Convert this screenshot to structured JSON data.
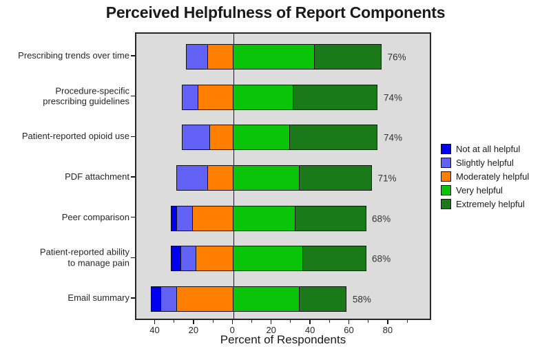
{
  "chart_data": {
    "type": "bar",
    "variant": "diverging-stacked-horizontal",
    "title": "Perceived Helpfulness of Report Components",
    "xlabel": "Percent of Respondents",
    "plot_background": "#dcdcdc",
    "grid": false,
    "zero_line": true,
    "legend_position": "right-center",
    "x_range": [
      -50,
      102
    ],
    "x_major_ticks": [
      {
        "value": -40,
        "label": "40"
      },
      {
        "value": -20,
        "label": "20"
      },
      {
        "value": 0,
        "label": "0"
      },
      {
        "value": 20,
        "label": "20"
      },
      {
        "value": 40,
        "label": "40"
      },
      {
        "value": 60,
        "label": "60"
      },
      {
        "value": 80,
        "label": "80"
      }
    ],
    "x_minor_tick_values": [
      -30,
      -10,
      10,
      30,
      50,
      70,
      90
    ],
    "categories": [
      "Prescribing trends over time",
      "Procedure-specific\nprescribing guidelines",
      "Patient-reported opioid use",
      "PDF attachment",
      "Peer comparison",
      "Patient-reported ability\nto manage pain",
      "Email summary"
    ],
    "series": [
      {
        "name": "Not at all helpful",
        "color": "#0000f0",
        "side": "negative",
        "values": [
          0,
          0,
          0,
          0,
          3,
          5,
          5
        ]
      },
      {
        "name": "Slightly helpful",
        "color": "#6161f5",
        "side": "negative",
        "values": [
          11,
          8,
          14,
          16,
          8,
          8,
          8
        ]
      },
      {
        "name": "Moderately helpful",
        "color": "#ff8000",
        "side": "negative",
        "values": [
          13,
          18,
          12,
          13,
          21,
          19,
          29
        ]
      },
      {
        "name": "Very helpful",
        "color": "#0ac40a",
        "side": "positive",
        "values": [
          42,
          31,
          29,
          34,
          32,
          36,
          34
        ]
      },
      {
        "name": "Extremely helpful",
        "color": "#1a7a1a",
        "side": "positive",
        "values": [
          34,
          43,
          45,
          37,
          36,
          32,
          24
        ]
      }
    ],
    "bar_total_labels": [
      "76%",
      "74%",
      "74%",
      "71%",
      "68%",
      "68%",
      "58%"
    ]
  }
}
